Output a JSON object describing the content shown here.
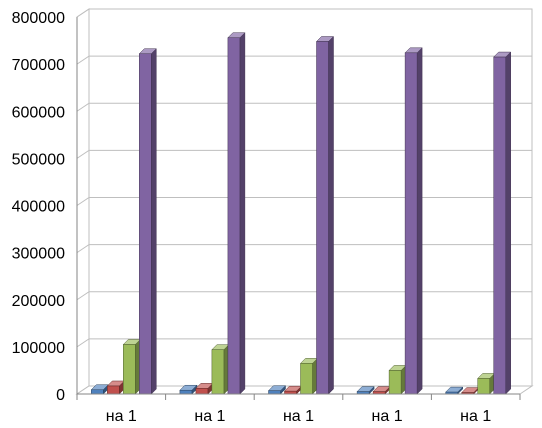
{
  "chart_data": {
    "type": "bar",
    "style": "3d-clustered-column",
    "categories": [
      "на 1",
      "на 1",
      "на 1",
      "на 1",
      "на 1"
    ],
    "series": [
      {
        "color": "#4F81BD",
        "values": [
          9000,
          8000,
          7000,
          5000,
          4000
        ]
      },
      {
        "color": "#C0504D",
        "values": [
          17000,
          12000,
          6000,
          5000,
          3000
        ]
      },
      {
        "color": "#9BBB59",
        "values": [
          105000,
          94000,
          65000,
          50000,
          33000
        ]
      },
      {
        "color": "#8064A2",
        "values": [
          722000,
          756000,
          748000,
          724000,
          715000
        ]
      }
    ],
    "yticks": [
      "0",
      "100000",
      "200000",
      "300000",
      "400000",
      "500000",
      "600000",
      "700000",
      "800000"
    ],
    "ylim": [
      0,
      800000
    ],
    "grid": true,
    "legend": "none",
    "title": "",
    "xlabel": "",
    "ylabel": ""
  }
}
